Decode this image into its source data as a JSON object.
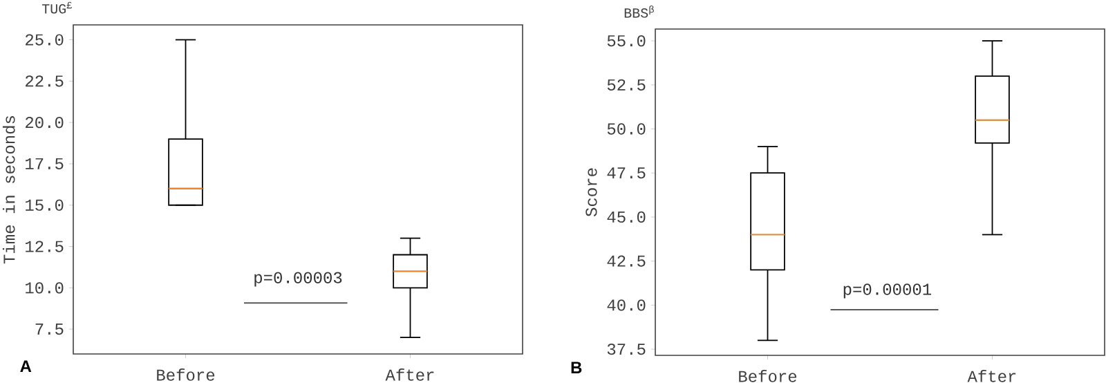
{
  "chart_data": [
    {
      "type": "box",
      "title": "TUG$^{£}$",
      "ylabel": "Time in seconds",
      "categories": [
        "Before",
        "After"
      ],
      "boxes": [
        {
          "low": 15,
          "q1": 15,
          "median": 16,
          "q3": 19,
          "high": 25
        },
        {
          "low": 7,
          "q1": 10,
          "median": 11,
          "q3": 12,
          "high": 13
        }
      ],
      "ylim": [
        6.0,
        25.9
      ],
      "yticks": [
        {
          "value": 7.5,
          "label": "7.5"
        },
        {
          "value": 10,
          "label": "10.0"
        },
        {
          "value": 12.5,
          "label": "12.5"
        },
        {
          "value": 15,
          "label": "15.0"
        },
        {
          "value": 17.5,
          "label": "17.5"
        },
        {
          "value": 20,
          "label": "20.0"
        },
        {
          "value": 22.5,
          "label": "22.5"
        },
        {
          "value": 25,
          "label": "25.0"
        }
      ],
      "annotations": [
        "p=0.00003",
        "A"
      ]
    },
    {
      "type": "box",
      "title": "BBS$^{β}$",
      "ylabel": "Score",
      "categories": [
        "Before",
        "After"
      ],
      "boxes": [
        {
          "low": 38,
          "q1": 42,
          "median": 44,
          "q3": 47.5,
          "high": 49
        },
        {
          "low": 44,
          "q1": 49.2,
          "median": 50.5,
          "q3": 53,
          "high": 55
        }
      ],
      "ylim": [
        37.15,
        55.67
      ],
      "yticks": [
        {
          "value": 37.5,
          "label": "37.5"
        },
        {
          "value": 40,
          "label": "40.0"
        },
        {
          "value": 42.5,
          "label": "42.5"
        },
        {
          "value": 45,
          "label": "45.0"
        },
        {
          "value": 47.5,
          "label": "47.5"
        },
        {
          "value": 50,
          "label": "50.0"
        },
        {
          "value": 52.5,
          "label": "52.5"
        },
        {
          "value": 55,
          "label": "55.0"
        }
      ],
      "annotations": [
        "p=0.00001",
        "B"
      ]
    }
  ]
}
